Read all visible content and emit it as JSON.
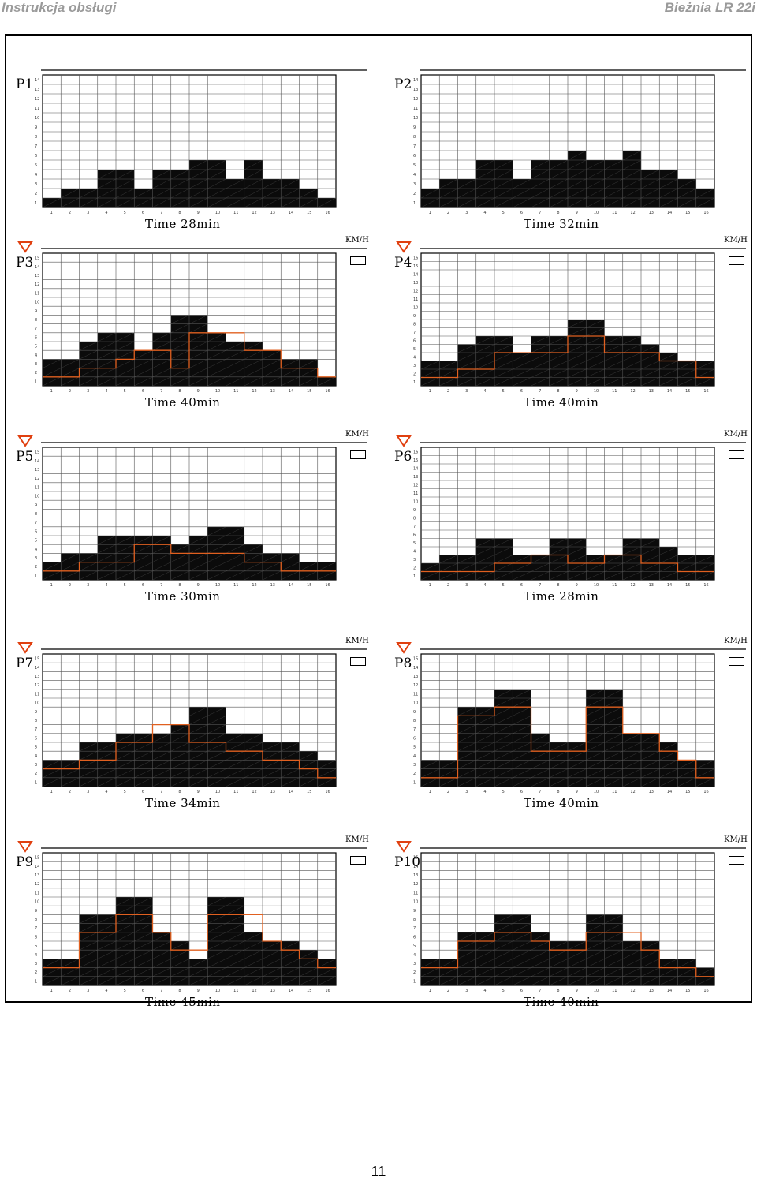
{
  "header": {
    "left": "Instrukcja obsługi",
    "right": "Bieżnia LR 22i"
  },
  "page_number": "11",
  "colors": {
    "bar_fill": "#0b0b0b",
    "grid": "#000000",
    "incline_line": "#e06020",
    "indicator": "#e04010"
  },
  "chart_data": [
    {
      "type": "bar",
      "label": "P1",
      "unit": "",
      "time": "Time 28min",
      "categories": [
        1,
        2,
        3,
        4,
        5,
        6,
        7,
        8,
        9,
        10,
        11,
        12,
        13,
        14,
        15,
        16
      ],
      "speed": [
        1,
        2,
        2,
        4,
        4,
        2,
        4,
        4,
        5,
        5,
        3,
        5,
        3,
        3,
        2,
        1
      ],
      "incline": null,
      "ylim": [
        1,
        14
      ],
      "show_indicator": false,
      "show_unit": false
    },
    {
      "type": "bar",
      "label": "P2",
      "unit": "",
      "time": "Time 32min",
      "categories": [
        1,
        2,
        3,
        4,
        5,
        6,
        7,
        8,
        9,
        10,
        11,
        12,
        13,
        14,
        15,
        16
      ],
      "speed": [
        2,
        3,
        3,
        5,
        5,
        3,
        5,
        5,
        6,
        5,
        5,
        6,
        4,
        4,
        3,
        2
      ],
      "incline": null,
      "ylim": [
        1,
        14
      ],
      "show_indicator": false,
      "show_unit": false
    },
    {
      "type": "bar",
      "label": "P3",
      "unit": "KM/H",
      "time": "Time 40min",
      "categories": [
        1,
        2,
        3,
        4,
        5,
        6,
        7,
        8,
        9,
        10,
        11,
        12,
        13,
        14,
        15,
        16
      ],
      "speed": [
        3,
        3,
        5,
        6,
        6,
        4,
        6,
        8,
        8,
        6,
        5,
        5,
        4,
        3,
        3,
        1
      ],
      "incline": [
        1,
        1,
        2,
        2,
        3,
        4,
        4,
        2,
        6,
        6,
        6,
        4,
        4,
        2,
        2,
        1
      ],
      "ylim": [
        1,
        15
      ],
      "show_indicator": true,
      "show_unit": true
    },
    {
      "type": "bar",
      "label": "P4",
      "unit": "KM/H",
      "time": "Time 40min",
      "categories": [
        1,
        2,
        3,
        4,
        5,
        6,
        7,
        8,
        9,
        10,
        11,
        12,
        13,
        14,
        15,
        16
      ],
      "speed": [
        3,
        3,
        5,
        6,
        6,
        4,
        6,
        6,
        8,
        8,
        6,
        6,
        5,
        4,
        3,
        3
      ],
      "incline": [
        1,
        1,
        2,
        2,
        4,
        4,
        4,
        4,
        6,
        6,
        4,
        4,
        4,
        3,
        3,
        1
      ],
      "ylim": [
        1,
        16
      ],
      "show_indicator": true,
      "show_unit": true
    },
    {
      "type": "bar",
      "label": "P5",
      "unit": "KM/H",
      "time": "Time 30min",
      "categories": [
        1,
        2,
        3,
        4,
        5,
        6,
        7,
        8,
        9,
        10,
        11,
        12,
        13,
        14,
        15,
        16
      ],
      "speed": [
        2,
        3,
        3,
        5,
        5,
        5,
        5,
        4,
        5,
        6,
        6,
        4,
        3,
        3,
        2,
        2
      ],
      "incline": [
        1,
        1,
        2,
        2,
        2,
        4,
        4,
        3,
        3,
        3,
        3,
        2,
        2,
        1,
        1,
        1
      ],
      "ylim": [
        1,
        15
      ],
      "show_indicator": true,
      "show_unit": true
    },
    {
      "type": "bar",
      "label": "P6",
      "unit": "KM/H",
      "time": "Time 28min",
      "categories": [
        1,
        2,
        3,
        4,
        5,
        6,
        7,
        8,
        9,
        10,
        11,
        12,
        13,
        14,
        15,
        16
      ],
      "speed": [
        2,
        3,
        3,
        5,
        5,
        3,
        3,
        5,
        5,
        3,
        3,
        5,
        5,
        4,
        3,
        3
      ],
      "incline": [
        1,
        1,
        1,
        1,
        2,
        2,
        3,
        3,
        2,
        2,
        3,
        3,
        2,
        2,
        1,
        1
      ],
      "ylim": [
        1,
        16
      ],
      "show_indicator": true,
      "show_unit": true
    },
    {
      "type": "bar",
      "label": "P7",
      "unit": "KM/H",
      "time": "Time 34min",
      "categories": [
        1,
        2,
        3,
        4,
        5,
        6,
        7,
        8,
        9,
        10,
        11,
        12,
        13,
        14,
        15,
        16
      ],
      "speed": [
        3,
        3,
        5,
        5,
        6,
        6,
        6,
        7,
        9,
        9,
        6,
        6,
        5,
        5,
        4,
        3
      ],
      "incline": [
        2,
        2,
        3,
        3,
        5,
        5,
        7,
        7,
        5,
        5,
        4,
        4,
        3,
        3,
        2,
        1
      ],
      "ylim": [
        1,
        15
      ],
      "show_indicator": true,
      "show_unit": true
    },
    {
      "type": "bar",
      "label": "P8",
      "unit": "KM/H",
      "time": "Time 40min",
      "categories": [
        1,
        2,
        3,
        4,
        5,
        6,
        7,
        8,
        9,
        10,
        11,
        12,
        13,
        14,
        15,
        16
      ],
      "speed": [
        3,
        3,
        9,
        9,
        11,
        11,
        6,
        5,
        5,
        11,
        11,
        6,
        6,
        5,
        3,
        3
      ],
      "incline": [
        1,
        1,
        8,
        8,
        9,
        9,
        4,
        4,
        4,
        9,
        9,
        6,
        6,
        4,
        3,
        1
      ],
      "ylim": [
        1,
        15
      ],
      "show_indicator": true,
      "show_unit": true
    },
    {
      "type": "bar",
      "label": "P9",
      "unit": "KM/H",
      "time": "Time 45min",
      "categories": [
        1,
        2,
        3,
        4,
        5,
        6,
        7,
        8,
        9,
        10,
        11,
        12,
        13,
        14,
        15,
        16
      ],
      "speed": [
        3,
        3,
        8,
        8,
        10,
        10,
        6,
        5,
        3,
        10,
        10,
        6,
        5,
        5,
        4,
        3
      ],
      "incline": [
        2,
        2,
        6,
        6,
        8,
        8,
        6,
        4,
        4,
        8,
        8,
        8,
        5,
        4,
        3,
        2
      ],
      "ylim": [
        1,
        15
      ],
      "show_indicator": true,
      "show_unit": true
    },
    {
      "type": "bar",
      "label": "P10",
      "unit": "KM/H",
      "time": "Time 40min",
      "categories": [
        1,
        2,
        3,
        4,
        5,
        6,
        7,
        8,
        9,
        10,
        11,
        12,
        13,
        14,
        15,
        16
      ],
      "speed": [
        3,
        3,
        6,
        6,
        8,
        8,
        6,
        5,
        5,
        8,
        8,
        5,
        5,
        3,
        3,
        2
      ],
      "incline": [
        2,
        2,
        5,
        5,
        6,
        6,
        5,
        4,
        4,
        6,
        6,
        6,
        4,
        2,
        2,
        1
      ],
      "ylim": [
        1,
        15
      ],
      "show_indicator": true,
      "show_unit": true
    }
  ]
}
